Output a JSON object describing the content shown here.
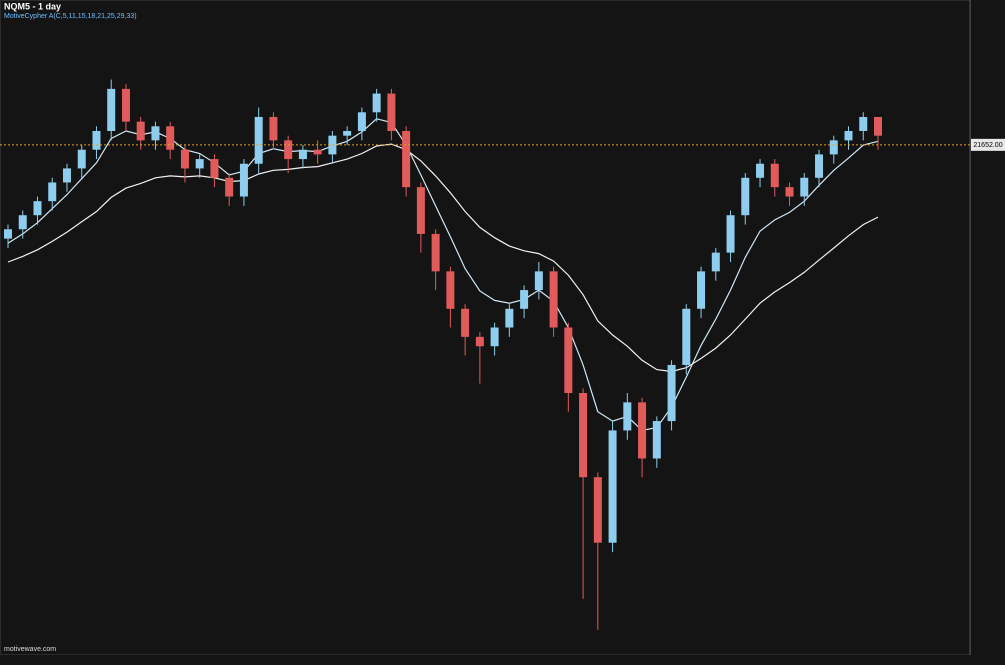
{
  "chart_data": {
    "type": "candlestick",
    "title": "NQM5 - 1 day",
    "subtitle": "MotiveCypher A(C,5,11,15,18,21,25,29,33)",
    "watermark": "motivewave.com",
    "up_color": "#8ecdee",
    "down_color": "#e25b5b",
    "ylim": [
      16200,
      23200
    ],
    "price_line": {
      "value": 21652,
      "label": "21652.00",
      "color": "#e0a030"
    },
    "open": [
      20650,
      20750,
      20900,
      21050,
      21250,
      21400,
      21600,
      21800,
      22250,
      21900,
      21700,
      21850,
      21600,
      21400,
      21500,
      21300,
      21100,
      21450,
      21950,
      21700,
      21500,
      21600,
      21550,
      21750,
      21800,
      22000,
      22200,
      21800,
      21200,
      20700,
      20300,
      19900,
      19600,
      19500,
      19700,
      19900,
      20100,
      20300,
      19700,
      19000,
      18100,
      17400,
      18600,
      18900,
      18300,
      18700,
      19300,
      19900,
      20300,
      20500,
      20900,
      21300,
      21450,
      21200,
      21100,
      21300,
      21550,
      21700,
      21800,
      21950
    ],
    "high": [
      20800,
      20950,
      21100,
      21300,
      21450,
      21650,
      21850,
      22350,
      22300,
      21950,
      21900,
      21900,
      21650,
      21550,
      21550,
      21350,
      21500,
      22050,
      22000,
      21750,
      21650,
      21700,
      21800,
      21850,
      22050,
      22250,
      22250,
      21850,
      21250,
      20750,
      20350,
      19950,
      19650,
      19750,
      19950,
      20150,
      20400,
      20350,
      19750,
      19050,
      18150,
      18700,
      19000,
      18950,
      18750,
      19350,
      19950,
      20350,
      20550,
      20950,
      21350,
      21500,
      21500,
      21250,
      21350,
      21600,
      21750,
      21850,
      22000,
      21950
    ],
    "low": [
      20550,
      20650,
      20800,
      20950,
      21150,
      21300,
      21500,
      21700,
      21800,
      21600,
      21600,
      21500,
      21250,
      21300,
      21200,
      21000,
      21000,
      21350,
      21600,
      21350,
      21400,
      21450,
      21450,
      21650,
      21700,
      21900,
      21700,
      21100,
      20500,
      20100,
      19700,
      19400,
      19100,
      19400,
      19600,
      19800,
      20000,
      19600,
      18800,
      16800,
      16470,
      17300,
      18500,
      18100,
      18200,
      18600,
      19200,
      19800,
      20200,
      20400,
      20800,
      21200,
      21100,
      21000,
      21000,
      21200,
      21450,
      21600,
      21700,
      21600
    ],
    "close": [
      20750,
      20900,
      21050,
      21250,
      21400,
      21600,
      21800,
      22250,
      21900,
      21700,
      21850,
      21600,
      21400,
      21500,
      21300,
      21100,
      21450,
      21950,
      21700,
      21500,
      21600,
      21550,
      21750,
      21800,
      22000,
      22200,
      21800,
      21200,
      20700,
      20300,
      19900,
      19600,
      19500,
      19700,
      19900,
      20100,
      20300,
      19700,
      19000,
      18100,
      17400,
      18600,
      18900,
      18300,
      18700,
      19300,
      19900,
      20300,
      20500,
      20900,
      21300,
      21450,
      21200,
      21100,
      21300,
      21550,
      21700,
      21800,
      21950,
      21750
    ],
    "ribbon": [
      {
        "color": "#cfe8f5",
        "values": [
          20600,
          20700,
          20820,
          20970,
          21120,
          21290,
          21460,
          21720,
          21800,
          21760,
          21790,
          21720,
          21600,
          21560,
          21460,
          21330,
          21370,
          21560,
          21610,
          21580,
          21590,
          21580,
          21640,
          21690,
          21790,
          21930,
          21890,
          21650,
          21330,
          21000,
          20670,
          20330,
          20090,
          19990,
          19960,
          20000,
          20100,
          19980,
          19700,
          19300,
          18800,
          18700,
          18750,
          18600,
          18630,
          18850,
          19170,
          19510,
          19790,
          20100,
          20450,
          20730,
          20850,
          20930,
          21050,
          21220,
          21380,
          21510,
          21650,
          21690
        ]
      },
      {
        "color": "#f2f2f2",
        "values": [
          20400,
          20460,
          20530,
          20620,
          20720,
          20830,
          20940,
          21090,
          21190,
          21240,
          21300,
          21320,
          21310,
          21320,
          21300,
          21260,
          21270,
          21340,
          21380,
          21390,
          21410,
          21420,
          21460,
          21500,
          21560,
          21640,
          21660,
          21600,
          21480,
          21320,
          21140,
          20940,
          20770,
          20660,
          20570,
          20520,
          20490,
          20410,
          20260,
          20050,
          19770,
          19620,
          19500,
          19350,
          19250,
          19230,
          19270,
          19370,
          19480,
          19620,
          19790,
          19960,
          20080,
          20180,
          20290,
          20420,
          20550,
          20680,
          20800,
          20880
        ]
      }
    ]
  }
}
